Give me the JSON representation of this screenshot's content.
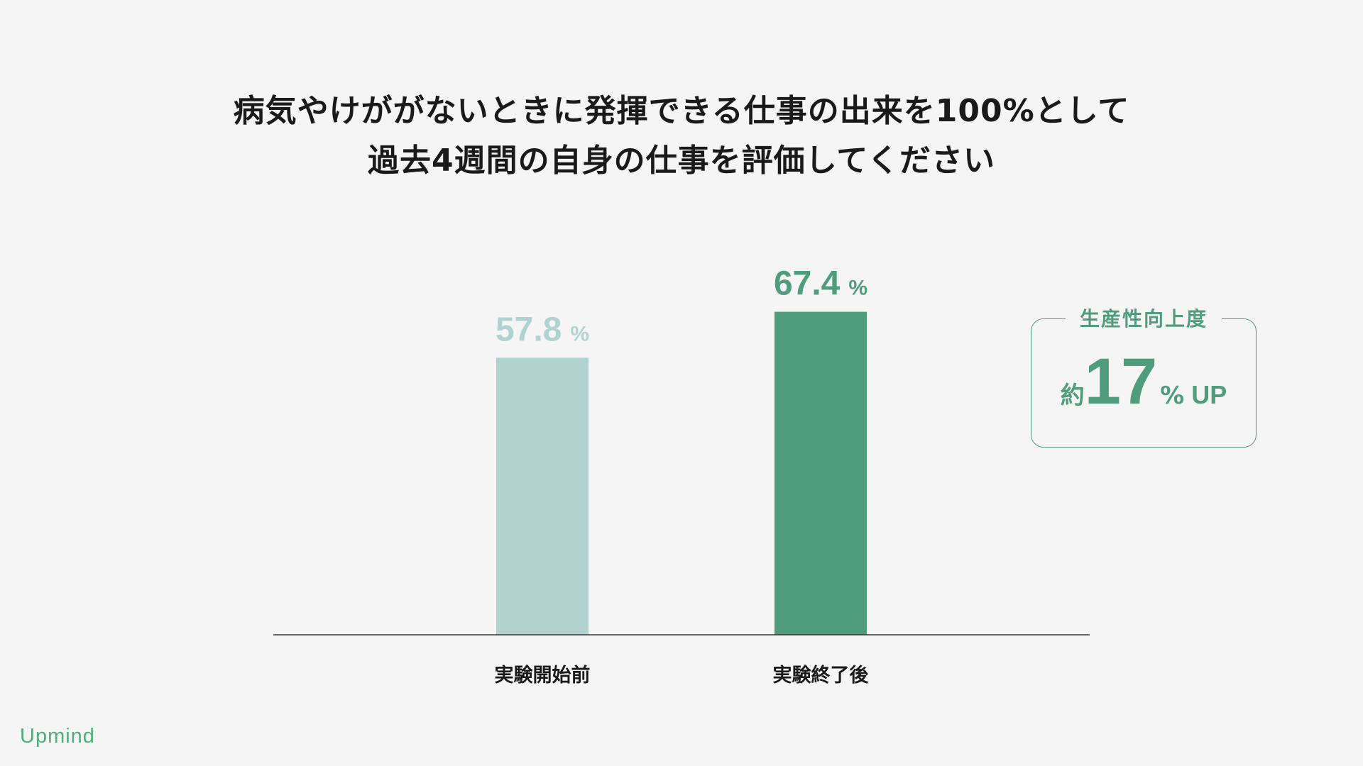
{
  "chart_data": {
    "type": "bar",
    "title": "病気やけががないときに発揮できる仕事の出来を100%として過去4週間の自身の仕事を評価してください",
    "title_lines": [
      "病気やけががないときに発揮できる仕事の出来を100%として",
      "過去4週間の自身の仕事を評価してください"
    ],
    "categories": [
      "実験開始前",
      "実験終了後"
    ],
    "values": [
      57.8,
      67.4
    ],
    "value_labels": [
      "57.8",
      "67.4"
    ],
    "unit": "%",
    "colors": [
      "#b0d3d0",
      "#4f9d7d"
    ],
    "ylim": [
      0,
      74
    ],
    "grid": false,
    "legend": "none"
  },
  "callout": {
    "label": "生産性向上度",
    "prefix": "約",
    "number": "17",
    "unit": "%",
    "suffix": "UP",
    "color": "#4f9d7d"
  },
  "brand": {
    "logo": "Upmind",
    "color": "#4fae7c"
  }
}
